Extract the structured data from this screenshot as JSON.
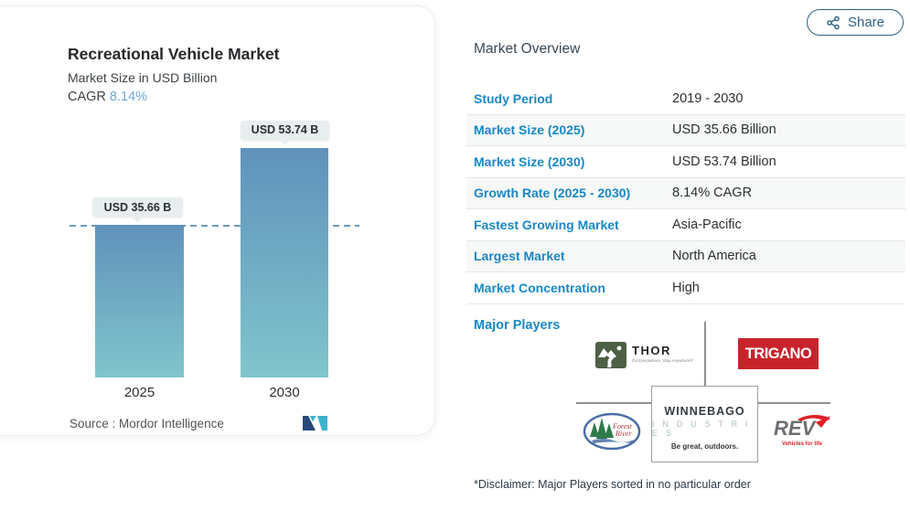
{
  "share": {
    "label": "Share"
  },
  "chart_card": {
    "title": "Recreational Vehicle Market",
    "subtitle": "Market Size in USD Billion",
    "cagr_label": "CAGR",
    "cagr_value": "8.14%",
    "source": "Source :  Mordor Intelligence"
  },
  "chart_data": {
    "type": "bar",
    "title": "Recreational Vehicle Market",
    "subtitle": "Market Size in USD Billion",
    "cagr": "8.14%",
    "categories": [
      "2025",
      "2030"
    ],
    "values": [
      35.66,
      53.74
    ],
    "value_labels": [
      "USD 35.66 B",
      "USD 53.74 B"
    ],
    "ylabel": "USD Billion",
    "ylim": [
      0,
      60
    ],
    "reference_line": 35.66,
    "grid": false,
    "legend": false,
    "bar_gradient_top": "#6092bb",
    "bar_gradient_bottom": "#80c5cc",
    "reference_line_color": "#6b9ac2"
  },
  "overview": {
    "heading": "Market Overview",
    "rows": [
      {
        "label": "Study Period",
        "value": "2019 - 2030"
      },
      {
        "label": "Market Size (2025)",
        "value": "USD 35.66 Billion"
      },
      {
        "label": "Market Size (2030)",
        "value": "USD 53.74 Billion"
      },
      {
        "label": "Growth Rate (2025 - 2030)",
        "value": "8.14% CAGR"
      },
      {
        "label": "Fastest Growing Market",
        "value": "Asia-Pacific"
      },
      {
        "label": "Largest Market",
        "value": "North America"
      },
      {
        "label": "Market Concentration",
        "value": "High"
      }
    ],
    "major_players_label": "Major Players",
    "disclaimer": "*Disclaimer: Major Players sorted in no particular order"
  },
  "players": {
    "thor": {
      "name": "THOR",
      "tagline": "Go Everywhere, Stay Anywhere®"
    },
    "trigano": {
      "name": "TRIGANO"
    },
    "forest_river": {
      "line1": "Forest",
      "line2": "River"
    },
    "winnebago": {
      "line1": "WINNEBAGO",
      "line2": "I N D U S T R I E S",
      "tagline": "Be great, outdoors."
    },
    "rev": {
      "name": "REV",
      "tagline": "Vehicles for life"
    }
  },
  "colors": {
    "accent_blue": "#1987c5",
    "cagr_blue": "#72a7d9",
    "share_blue": "#2d6185",
    "trigano_red": "#c8232c",
    "thor_green": "#4d5f44",
    "rev_red": "#e01f26",
    "mi_navy": "#27497c",
    "mi_teal": "#3eb3cd"
  }
}
